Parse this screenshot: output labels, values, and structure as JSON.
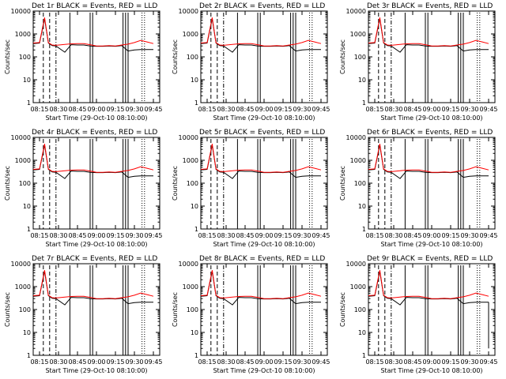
{
  "chart_data": [
    {
      "type": "line",
      "title": "Det 1r  BLACK = Events, RED = LLD",
      "spike": true
    },
    {
      "type": "line",
      "title": "Det 2r  BLACK = Events, RED = LLD",
      "spike": true
    },
    {
      "type": "line",
      "title": "Det 3r  BLACK = Events, RED = LLD",
      "spike": true
    },
    {
      "type": "line",
      "title": "Det 4r  BLACK = Events, RED = LLD",
      "spike": true
    },
    {
      "type": "line",
      "title": "Det 5r  BLACK = Events, RED = LLD",
      "spike": true
    },
    {
      "type": "line",
      "title": "Det 6r  BLACK = Events, RED = LLD",
      "spike": true
    },
    {
      "type": "line",
      "title": "Det 7r  BLACK = Events, RED = LLD",
      "spike": true
    },
    {
      "type": "line",
      "title": "Det 8r  BLACK = Events, RED = LLD",
      "spike": true
    },
    {
      "type": "line",
      "title": "Det 9r  BLACK = Events, RED = LLD",
      "spike": true,
      "tail_drop": true
    }
  ],
  "shared": {
    "ylabel": "Counts/sec",
    "xlabel": "Start Time (29-Oct-10 08:10:00)",
    "x_ticks": [
      "08:15",
      "08:30",
      "08:45",
      "09:00",
      "09:15",
      "09:30",
      "09:45"
    ],
    "y_ticks": [
      "1",
      "10",
      "100",
      "1000",
      "10000"
    ],
    "y_scale": "log",
    "ylim": [
      1,
      10000
    ],
    "series": [
      {
        "name": "Events",
        "color": "#000000"
      },
      {
        "name": "LLD",
        "color": "#ff0000"
      }
    ],
    "time_minutes": [
      0,
      5,
      9,
      12,
      15,
      18,
      25,
      30,
      35,
      40,
      45,
      50,
      55,
      60,
      65,
      70,
      75,
      80,
      85,
      90,
      95
    ],
    "lld_counts": [
      400,
      420,
      5200,
      420,
      330,
      320,
      350,
      370,
      380,
      380,
      340,
      300,
      300,
      310,
      300,
      330,
      360,
      420,
      520,
      450,
      380
    ],
    "events_counts": [
      380,
      400,
      4600,
      400,
      310,
      300,
      160,
      340,
      330,
      330,
      300,
      290,
      290,
      300,
      290,
      310,
      180,
      200,
      210,
      210,
      210
    ]
  }
}
